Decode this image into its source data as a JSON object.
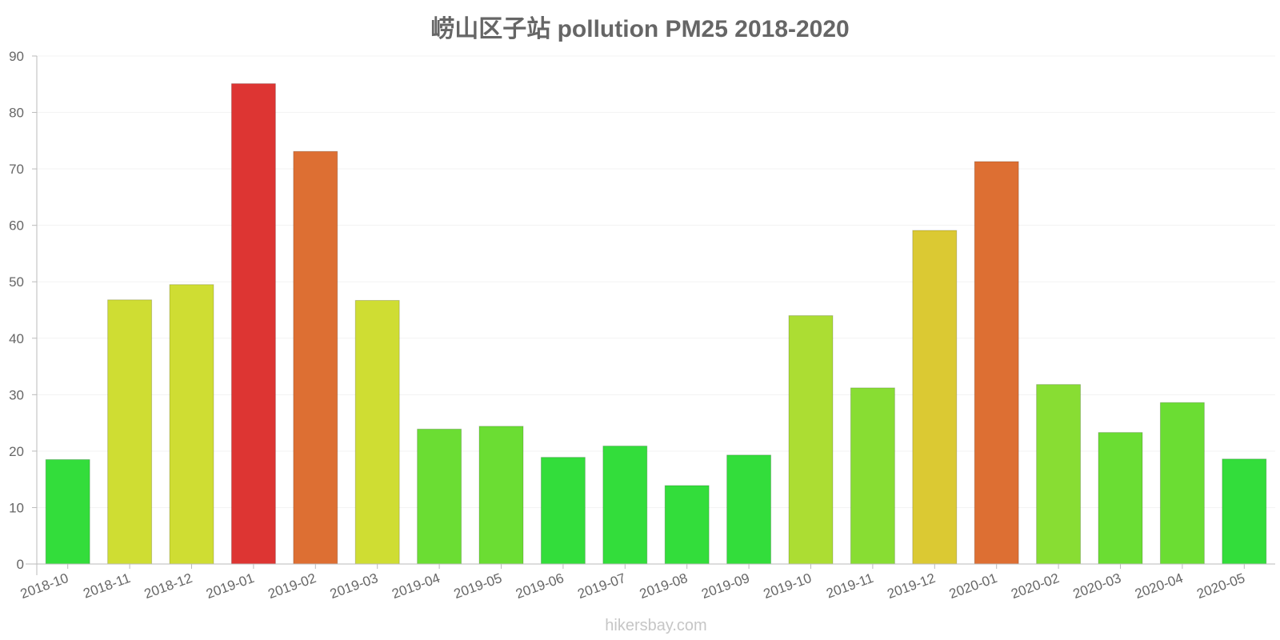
{
  "chart_data": {
    "type": "bar",
    "title": "崂山区子站 pollution PM25 2018-2020",
    "xlabel": "",
    "ylabel": "",
    "ylim": [
      0,
      90
    ],
    "yticks": [
      0,
      10,
      20,
      30,
      40,
      50,
      60,
      70,
      80,
      90
    ],
    "grid": true,
    "legend": "none",
    "categories": [
      "2018-10",
      "2018-11",
      "2018-12",
      "2019-01",
      "2019-02",
      "2019-03",
      "2019-04",
      "2019-05",
      "2019-06",
      "2019-07",
      "2019-08",
      "2019-09",
      "2019-10",
      "2019-11",
      "2019-12",
      "2020-01",
      "2020-02",
      "2020-03",
      "2020-04",
      "2020-05"
    ],
    "values": [
      18.5,
      46.8,
      49.5,
      85.1,
      73.1,
      46.7,
      23.9,
      24.4,
      18.9,
      20.9,
      13.9,
      19.3,
      44.0,
      31.2,
      59.1,
      71.3,
      31.8,
      23.3,
      28.6,
      18.6
    ],
    "colors": [
      "#33dd3b",
      "#cfdd33",
      "#cfdd33",
      "#dd3533",
      "#dd6f33",
      "#cfdd33",
      "#6bdd33",
      "#6bdd33",
      "#33dd3b",
      "#33dd3b",
      "#33dd3b",
      "#33dd3b",
      "#acdd33",
      "#88dd33",
      "#dbc933",
      "#dd6f33",
      "#88dd33",
      "#6bdd33",
      "#6bdd33",
      "#33dd3b"
    ]
  },
  "watermark": "hikersbay.com",
  "style": {
    "axis_color": "#bbbbbb",
    "grid_color": "#f3f3f3",
    "text_color": "#666666"
  }
}
